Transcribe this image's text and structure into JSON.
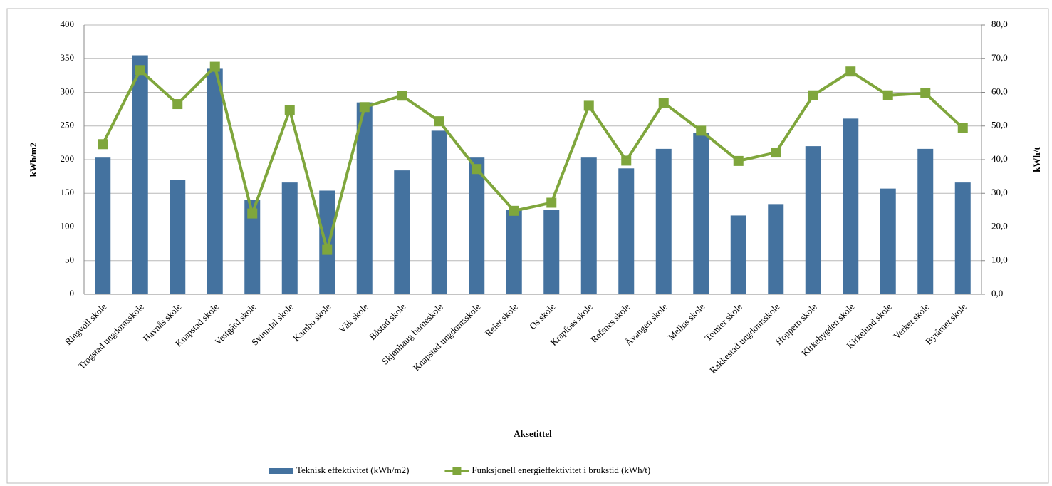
{
  "chart_data": {
    "type": "bar_line",
    "categories": [
      "Ringvoll skole",
      "Trøgstad ungdomsskole",
      "Havnås skole",
      "Knapstad skole",
      "Vestgård skole",
      "Svinndal skole",
      "Kambo skole",
      "Våk skole",
      "Båstad skole",
      "Skjønhaug barneskole",
      "Knapstad ungdomsskole",
      "Reier skole",
      "Os skole",
      "Krapfoss skole",
      "Refsnes skole",
      "Åvangen skole",
      "Melløs skole",
      "Tomter skole",
      "Rakkestad ungdomsskole",
      "Hoppern skole",
      "Kirkebygden skole",
      "Kirkelund skole",
      "Verket skole",
      "Bytårnet skole"
    ],
    "series": [
      {
        "name": "Teknisk effektivitet (kWh/m2)",
        "color": "#44729f",
        "type": "bar",
        "values": [
          203,
          355,
          170,
          335,
          140,
          166,
          154,
          285,
          184,
          243,
          203,
          125,
          125,
          203,
          187,
          216,
          240,
          117,
          134,
          220,
          261,
          157,
          216,
          166
        ]
      },
      {
        "name": "Funksjonell energieffektivitet i brukstid (kWh/t)",
        "color": "#7fa63c",
        "type": "line",
        "axis": "y2",
        "values": [
          44.6,
          66.6,
          56.5,
          67.6,
          24.0,
          54.7,
          13.2,
          55.6,
          59.0,
          51.4,
          37.2,
          24.8,
          27.2,
          56.0,
          39.7,
          56.9,
          48.6,
          39.6,
          42.1,
          59.1,
          66.2,
          59.1,
          59.7,
          49.4
        ]
      }
    ],
    "ylabel": "kWh/m2",
    "y2label": "kWh/t",
    "xlabel": "Aksetittel",
    "ylim": [
      0,
      400
    ],
    "yticks": [
      0,
      50,
      100,
      150,
      200,
      250,
      300,
      350,
      400
    ],
    "y2lim": [
      0,
      80
    ],
    "y2ticks": [
      {
        "value": 0,
        "label": "0,0"
      },
      {
        "value": 10,
        "label": "10,0"
      },
      {
        "value": 20,
        "label": "20,0"
      },
      {
        "value": 30,
        "label": "30,0"
      },
      {
        "value": 40,
        "label": "40,0"
      },
      {
        "value": 50,
        "label": "50,0"
      },
      {
        "value": 60,
        "label": "60,0"
      },
      {
        "value": 70,
        "label": "70,0"
      },
      {
        "value": 80,
        "label": "80,0"
      }
    ],
    "grid": true,
    "legend": "bottom"
  }
}
